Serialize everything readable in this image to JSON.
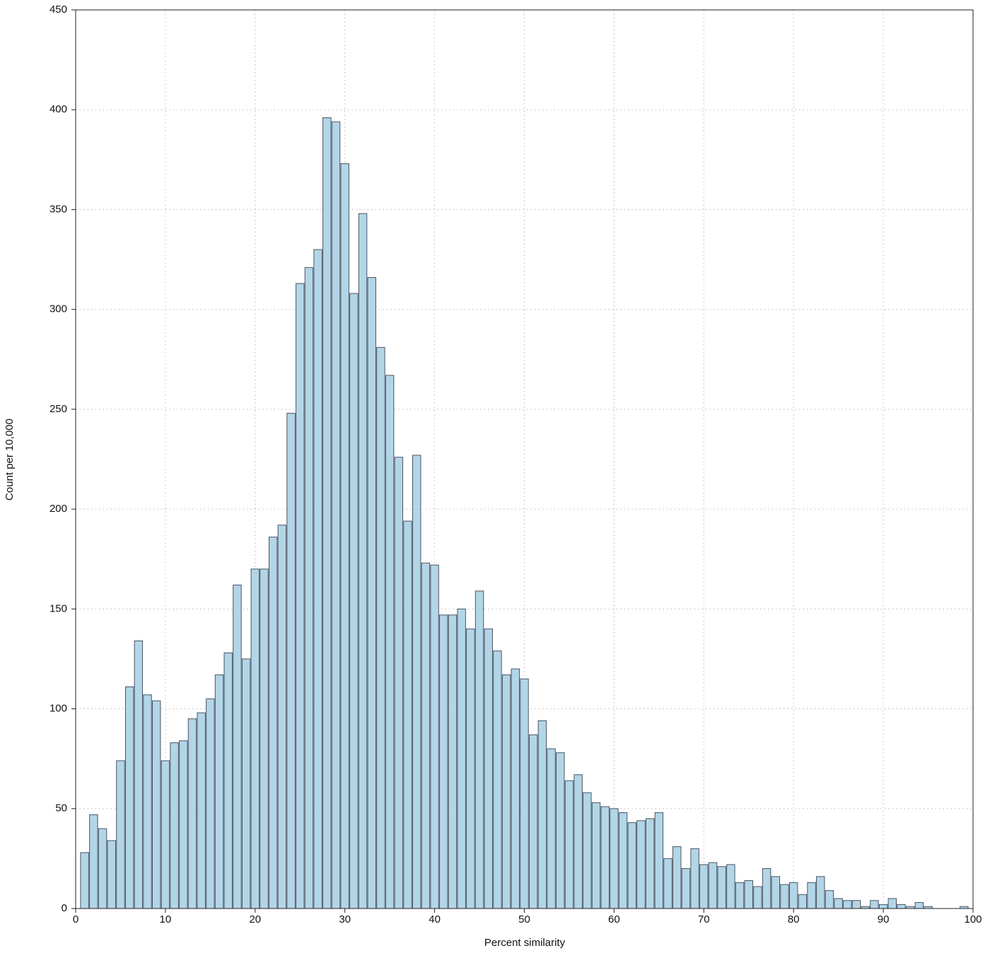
{
  "chart_data": {
    "type": "bar",
    "x_label": "Percent similarity",
    "y_label": "Count per 10,000",
    "x": [
      1,
      2,
      3,
      4,
      5,
      6,
      7,
      8,
      9,
      10,
      11,
      12,
      13,
      14,
      15,
      16,
      17,
      18,
      19,
      20,
      21,
      22,
      23,
      24,
      25,
      26,
      27,
      28,
      29,
      30,
      31,
      32,
      33,
      34,
      35,
      36,
      37,
      38,
      39,
      40,
      41,
      42,
      43,
      44,
      45,
      46,
      47,
      48,
      49,
      50,
      51,
      52,
      53,
      54,
      55,
      56,
      57,
      58,
      59,
      60,
      61,
      62,
      63,
      64,
      65,
      66,
      67,
      68,
      69,
      70,
      71,
      72,
      73,
      74,
      75,
      76,
      77,
      78,
      79,
      80,
      81,
      82,
      83,
      84,
      85,
      86,
      87,
      88,
      89,
      90,
      91,
      92,
      93,
      94,
      95,
      96,
      97,
      98,
      99
    ],
    "values": [
      28,
      47,
      40,
      34,
      74,
      111,
      134,
      107,
      104,
      74,
      83,
      84,
      95,
      98,
      105,
      117,
      128,
      162,
      125,
      170,
      170,
      186,
      192,
      248,
      313,
      321,
      330,
      396,
      394,
      373,
      308,
      348,
      316,
      281,
      267,
      226,
      194,
      227,
      173,
      172,
      147,
      147,
      150,
      140,
      159,
      140,
      129,
      117,
      120,
      115,
      87,
      94,
      80,
      78,
      64,
      67,
      58,
      53,
      51,
      50,
      48,
      43,
      44,
      45,
      48,
      25,
      31,
      20,
      30,
      22,
      23,
      21,
      22,
      13,
      14,
      11,
      20,
      16,
      12,
      13,
      7,
      13,
      16,
      9,
      5,
      4,
      4,
      1,
      4,
      2,
      5,
      2,
      1,
      3,
      1,
      0,
      0,
      0,
      1
    ],
    "color": "#b3d5e8",
    "edge_color": "#4a5560",
    "xlim": [
      0,
      100
    ],
    "xticks": [
      0,
      10,
      20,
      30,
      40,
      50,
      60,
      70,
      80,
      90,
      100
    ],
    "ylim": [
      0,
      450
    ],
    "yticks": [
      0,
      50,
      100,
      150,
      200,
      250,
      300,
      350,
      400,
      450
    ],
    "grid": true
  }
}
